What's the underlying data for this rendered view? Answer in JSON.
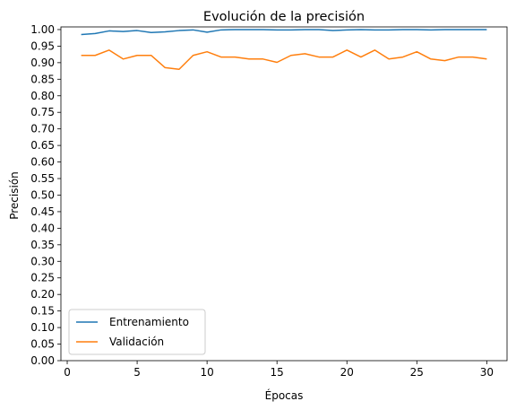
{
  "chart_data": {
    "type": "line",
    "title": "Evolución de la precisión",
    "xlabel": "Épocas",
    "ylabel": "Precisión",
    "xlim": [
      -0.45,
      31.45
    ],
    "ylim": [
      0.0,
      1.008
    ],
    "x_ticks": [
      0,
      5,
      10,
      15,
      20,
      25,
      30
    ],
    "y_ticks": [
      "0.00",
      "0.05",
      "0.10",
      "0.15",
      "0.20",
      "0.25",
      "0.30",
      "0.35",
      "0.40",
      "0.45",
      "0.50",
      "0.55",
      "0.60",
      "0.65",
      "0.70",
      "0.75",
      "0.80",
      "0.85",
      "0.90",
      "0.95",
      "1.00"
    ],
    "grid": false,
    "legend_position": "lower-left",
    "x": [
      1,
      2,
      3,
      4,
      5,
      6,
      7,
      8,
      9,
      10,
      11,
      12,
      13,
      14,
      15,
      16,
      17,
      18,
      19,
      20,
      21,
      22,
      23,
      24,
      25,
      26,
      27,
      28,
      29,
      30
    ],
    "series": [
      {
        "name": "Entrenamiento",
        "color": "#1f77b4",
        "values": [
          0.985,
          0.988,
          0.996,
          0.994,
          0.997,
          0.991,
          0.993,
          0.997,
          0.999,
          0.992,
          0.999,
          1.0,
          1.0,
          1.0,
          0.999,
          0.999,
          1.0,
          1.0,
          0.997,
          0.999,
          1.0,
          0.999,
          0.999,
          1.0,
          1.0,
          0.999,
          1.0,
          1.0,
          1.0,
          1.0
        ]
      },
      {
        "name": "Validación",
        "color": "#ff7f0e",
        "values": [
          0.922,
          0.922,
          0.938,
          0.911,
          0.922,
          0.922,
          0.885,
          0.88,
          0.922,
          0.933,
          0.917,
          0.917,
          0.911,
          0.911,
          0.901,
          0.922,
          0.927,
          0.917,
          0.917,
          0.938,
          0.917,
          0.938,
          0.911,
          0.917,
          0.933,
          0.911,
          0.906,
          0.917,
          0.917,
          0.911
        ]
      }
    ]
  }
}
